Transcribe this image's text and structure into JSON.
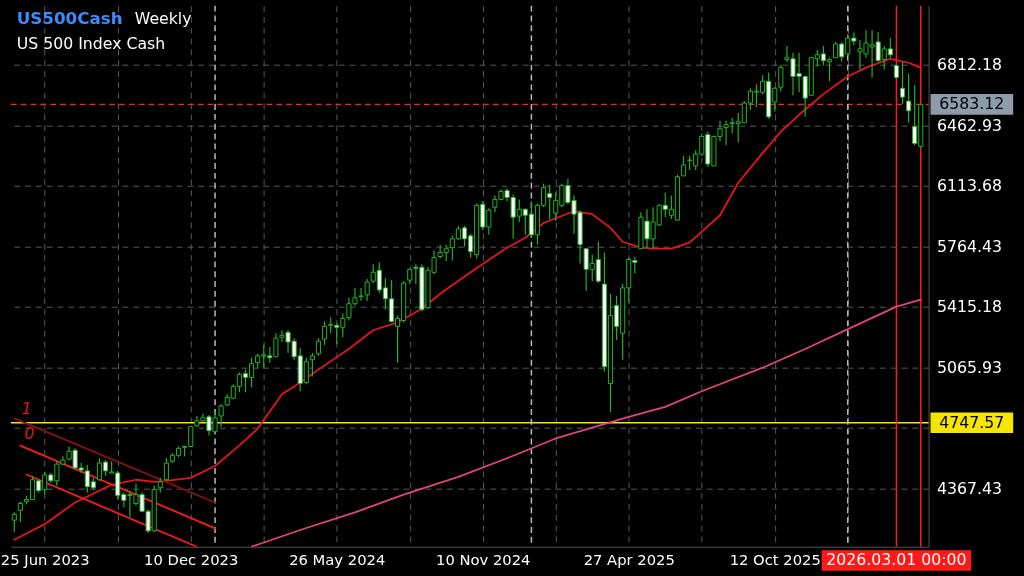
{
  "chart_data": {
    "type": "candlestick",
    "title": "US500Cash",
    "subtitle": "US 500 Index Cash",
    "annotations": [
      "Weekly",
      "1",
      "0"
    ],
    "color": "#22b422",
    "x": [
      "2023-05-21",
      "2023-05-28",
      "2023-06-04",
      "2023-06-11",
      "2023-06-18",
      "2023-06-25",
      "2023-07-02",
      "2023-07-09",
      "2023-07-16",
      "2023-07-23",
      "2023-07-30",
      "2023-08-06",
      "2023-08-13",
      "2023-08-20",
      "2023-08-27",
      "2023-09-03",
      "2023-09-10",
      "2023-09-17",
      "2023-09-24",
      "2023-10-01",
      "2023-10-08",
      "2023-10-15",
      "2023-10-22",
      "2023-10-29",
      "2023-11-05",
      "2023-11-12",
      "2023-11-19",
      "2023-11-26",
      "2023-12-03",
      "2023-12-10",
      "2023-12-17",
      "2023-12-24",
      "2023-12-31",
      "2024-01-07",
      "2024-01-14",
      "2024-01-21",
      "2024-01-28",
      "2024-02-04",
      "2024-02-11",
      "2024-02-18",
      "2024-02-25",
      "2024-03-03",
      "2024-03-10",
      "2024-03-17",
      "2024-03-24",
      "2024-03-31",
      "2024-04-07",
      "2024-04-14",
      "2024-04-21",
      "2024-04-28",
      "2024-05-05",
      "2024-05-12",
      "2024-05-19",
      "2024-05-26",
      "2024-06-02",
      "2024-06-09",
      "2024-06-16",
      "2024-06-23",
      "2024-06-30",
      "2024-07-07",
      "2024-07-14",
      "2024-07-21",
      "2024-07-28",
      "2024-08-04",
      "2024-08-11",
      "2024-08-18",
      "2024-08-25",
      "2024-09-01",
      "2024-09-08",
      "2024-09-15",
      "2024-09-22",
      "2024-09-29",
      "2024-10-06",
      "2024-10-13",
      "2024-10-20",
      "2024-10-27",
      "2024-11-03",
      "2024-11-10",
      "2024-11-17",
      "2024-11-24",
      "2024-12-01",
      "2024-12-08",
      "2024-12-15",
      "2024-12-22",
      "2024-12-29",
      "2025-01-05",
      "2025-01-12",
      "2025-01-19",
      "2025-01-26",
      "2025-02-02",
      "2025-02-09",
      "2025-02-16",
      "2025-02-23",
      "2025-03-02",
      "2025-03-09",
      "2025-03-16",
      "2025-03-23",
      "2025-03-30",
      "2025-04-06",
      "2025-04-13",
      "2025-04-20",
      "2025-04-27",
      "2025-05-04",
      "2025-05-11",
      "2025-05-18",
      "2025-05-25",
      "2025-06-01",
      "2025-06-08",
      "2025-06-15",
      "2025-06-22",
      "2025-06-29",
      "2025-07-06",
      "2025-07-13",
      "2025-07-20",
      "2025-07-27",
      "2025-08-03",
      "2025-08-10",
      "2025-08-17",
      "2025-08-24",
      "2025-08-31",
      "2025-09-07",
      "2025-09-14",
      "2025-09-21",
      "2025-09-28",
      "2025-10-05",
      "2025-10-12",
      "2025-10-19",
      "2025-10-26",
      "2025-11-02",
      "2025-11-09",
      "2025-11-16",
      "2025-11-23",
      "2025-11-30",
      "2025-12-07",
      "2025-12-14",
      "2025-12-21",
      "2025-12-28",
      "2026-01-04",
      "2026-01-11",
      "2026-01-18",
      "2026-01-25",
      "2026-02-01",
      "2026-02-08",
      "2026-02-15",
      "2026-02-22",
      "2026-03-01",
      "2026-03-08",
      "2026-03-15",
      "2026-03-22",
      "2026-03-29"
    ],
    "ohlc": [
      [
        4186,
        4232,
        4118,
        4220
      ],
      [
        4243,
        4294,
        4175,
        4282
      ],
      [
        4294,
        4328,
        4277,
        4305
      ],
      [
        4305,
        4441,
        4305,
        4419
      ],
      [
        4413,
        4419,
        4345,
        4356
      ],
      [
        4362,
        4464,
        4334,
        4447
      ],
      [
        4447,
        4458,
        4402,
        4413
      ],
      [
        4413,
        4526,
        4385,
        4509
      ],
      [
        4509,
        4555,
        4504,
        4532
      ],
      [
        4538,
        4611,
        4532,
        4583
      ],
      [
        4589,
        4600,
        4475,
        4487
      ],
      [
        4487,
        4515,
        4458,
        4475
      ],
      [
        4470,
        4504,
        4345,
        4379
      ],
      [
        4407,
        4430,
        4362,
        4373
      ],
      [
        4419,
        4543,
        4413,
        4515
      ],
      [
        4521,
        4532,
        4441,
        4470
      ],
      [
        4458,
        4526,
        4458,
        4464
      ],
      [
        4458,
        4470,
        4305,
        4328
      ],
      [
        4334,
        4345,
        4260,
        4300
      ],
      [
        4328,
        4356,
        4203,
        4334
      ],
      [
        4282,
        4396,
        4271,
        4334
      ],
      [
        4334,
        4345,
        4231,
        4237
      ],
      [
        4237,
        4248,
        4112,
        4124
      ],
      [
        4124,
        4385,
        4118,
        4362
      ],
      [
        4373,
        4430,
        4345,
        4407
      ],
      [
        4419,
        4543,
        4413,
        4515
      ],
      [
        4526,
        4572,
        4515,
        4560
      ],
      [
        4560,
        4611,
        4549,
        4600
      ],
      [
        4606,
        4617,
        4555,
        4611
      ],
      [
        4611,
        4730,
        4606,
        4725
      ],
      [
        4730,
        4787,
        4725,
        4759
      ],
      [
        4759,
        4799,
        4753,
        4776
      ],
      [
        4782,
        4793,
        4674,
        4702
      ],
      [
        4696,
        4810,
        4696,
        4776
      ],
      [
        4787,
        4855,
        4725,
        4844
      ],
      [
        4850,
        4912,
        4844,
        4895
      ],
      [
        4889,
        4969,
        4884,
        4957
      ],
      [
        4957,
        5037,
        4923,
        5026
      ],
      [
        5031,
        5054,
        4923,
        5009
      ],
      [
        5009,
        5122,
        4952,
        5088
      ],
      [
        5094,
        5145,
        5060,
        5133
      ],
      [
        5133,
        5196,
        5065,
        5139
      ],
      [
        5133,
        5184,
        5094,
        5122
      ],
      [
        5128,
        5264,
        5128,
        5235
      ],
      [
        5241,
        5281,
        5213,
        5252
      ],
      [
        5269,
        5281,
        5150,
        5213
      ],
      [
        5218,
        5235,
        5111,
        5128
      ],
      [
        5133,
        5179,
        4929,
        4974
      ],
      [
        4980,
        5122,
        4969,
        5099
      ],
      [
        5111,
        5150,
        5014,
        5133
      ],
      [
        5145,
        5235,
        5133,
        5218
      ],
      [
        5230,
        5332,
        5196,
        5303
      ],
      [
        5309,
        5354,
        5264,
        5315
      ],
      [
        5309,
        5320,
        5201,
        5298
      ],
      [
        5298,
        5377,
        5241,
        5349
      ],
      [
        5354,
        5468,
        5337,
        5434
      ],
      [
        5434,
        5525,
        5423,
        5468
      ],
      [
        5474,
        5525,
        5451,
        5479
      ],
      [
        5485,
        5576,
        5451,
        5559
      ],
      [
        5564,
        5661,
        5553,
        5615
      ],
      [
        5627,
        5672,
        5496,
        5513
      ],
      [
        5525,
        5581,
        5400,
        5462
      ],
      [
        5462,
        5570,
        5326,
        5332
      ],
      [
        5303,
        5366,
        5094,
        5349
      ],
      [
        5337,
        5564,
        5326,
        5553
      ],
      [
        5570,
        5638,
        5547,
        5632
      ],
      [
        5644,
        5661,
        5547,
        5638
      ],
      [
        5644,
        5661,
        5389,
        5400
      ],
      [
        5411,
        5644,
        5405,
        5627
      ],
      [
        5615,
        5740,
        5604,
        5700
      ],
      [
        5706,
        5774,
        5695,
        5729
      ],
      [
        5729,
        5774,
        5678,
        5751
      ],
      [
        5757,
        5825,
        5683,
        5808
      ],
      [
        5808,
        5882,
        5802,
        5865
      ],
      [
        5871,
        5882,
        5763,
        5808
      ],
      [
        5825,
        5837,
        5700,
        5734
      ],
      [
        5717,
        6012,
        5695,
        6001
      ],
      [
        6007,
        6024,
        5859,
        5876
      ],
      [
        5876,
        5984,
        5831,
        5973
      ],
      [
        5990,
        6058,
        5961,
        6035
      ],
      [
        6035,
        6092,
        6030,
        6081
      ],
      [
        6086,
        6098,
        6024,
        6046
      ],
      [
        6046,
        6063,
        5808,
        5933
      ],
      [
        5939,
        6035,
        5905,
        5978
      ],
      [
        5978,
        5984,
        5831,
        5944
      ],
      [
        5950,
        6024,
        5814,
        5831
      ],
      [
        5831,
        6012,
        5774,
        6001
      ],
      [
        6001,
        6126,
        5990,
        6103
      ],
      [
        6069,
        6120,
        5922,
        6046
      ],
      [
        5956,
        6075,
        5910,
        6029
      ],
      [
        6001,
        6126,
        5990,
        6115
      ],
      [
        6115,
        6154,
        6007,
        6018
      ],
      [
        6029,
        6058,
        5837,
        5950
      ],
      [
        5961,
        5973,
        5666,
        5774
      ],
      [
        5751,
        5757,
        5508,
        5632
      ],
      [
        5632,
        5717,
        5564,
        5666
      ],
      [
        5689,
        5791,
        5553,
        5564
      ],
      [
        5547,
        5729,
        5043,
        5071
      ],
      [
        4974,
        5491,
        4810,
        5366
      ],
      [
        5423,
        5479,
        5224,
        5303
      ],
      [
        5264,
        5547,
        5111,
        5525
      ],
      [
        5525,
        5700,
        5440,
        5689
      ],
      [
        5683,
        5706,
        5610,
        5672
      ],
      [
        5751,
        5961,
        5751,
        5933
      ],
      [
        5910,
        5978,
        5757,
        5808
      ],
      [
        5808,
        5990,
        5751,
        5905
      ],
      [
        5888,
        6007,
        5882,
        6001
      ],
      [
        6001,
        6075,
        5933,
        5978
      ],
      [
        5944,
        6058,
        5922,
        5978
      ],
      [
        5916,
        6177,
        5910,
        6166
      ],
      [
        6171,
        6285,
        6171,
        6234
      ],
      [
        6259,
        6285,
        6205,
        6262
      ],
      [
        6228,
        6319,
        6205,
        6296
      ],
      [
        6296,
        6415,
        6285,
        6398
      ],
      [
        6409,
        6426,
        6222,
        6239
      ],
      [
        6228,
        6404,
        6228,
        6398
      ],
      [
        6398,
        6489,
        6370,
        6443
      ],
      [
        6449,
        6489,
        6347,
        6466
      ],
      [
        6472,
        6506,
        6415,
        6477
      ],
      [
        6472,
        6534,
        6364,
        6483
      ],
      [
        6477,
        6602,
        6477,
        6591
      ],
      [
        6591,
        6676,
        6551,
        6659
      ],
      [
        6653,
        6699,
        6568,
        6659
      ],
      [
        6653,
        6750,
        6642,
        6716
      ],
      [
        6716,
        6767,
        6500,
        6511
      ],
      [
        6597,
        6682,
        6540,
        6676
      ],
      [
        6682,
        6812,
        6659,
        6795
      ],
      [
        6841,
        6920,
        6829,
        6852
      ],
      [
        6846,
        6880,
        6636,
        6744
      ],
      [
        6761,
        6880,
        6653,
        6744
      ],
      [
        6744,
        6750,
        6511,
        6619
      ],
      [
        6636,
        6858,
        6631,
        6852
      ],
      [
        6846,
        6897,
        6801,
        6869
      ],
      [
        6874,
        6920,
        6807,
        6835
      ],
      [
        6829,
        6852,
        6716,
        6841
      ],
      [
        6852,
        6943,
        6852,
        6931
      ],
      [
        6931,
        6943,
        6829,
        6857
      ],
      [
        6874,
        6988,
        6863,
        6965
      ],
      [
        6965,
        6999,
        6926,
        6948
      ],
      [
        6886,
        6954,
        6784,
        6903
      ],
      [
        6874,
        7011,
        6852,
        6937
      ],
      [
        6914,
        7011,
        6738,
        6926
      ],
      [
        6943,
        6999,
        6829,
        6835
      ],
      [
        6841,
        6920,
        6784,
        6903
      ],
      [
        6903,
        6965,
        6852,
        6869
      ],
      [
        6807,
        6812,
        6727,
        6738
      ],
      [
        6676,
        6829,
        6585,
        6625
      ],
      [
        6602,
        6761,
        6477,
        6546
      ],
      [
        6455,
        6693,
        6347,
        6358
      ],
      [
        6341,
        6585,
        6336,
        6583
      ]
    ],
    "series": [
      {
        "type": "line",
        "color": "#e8141b",
        "x": [
          "2023-05-21",
          "2023-06-25",
          "2023-07-30",
          "2023-09-10",
          "2023-10-08",
          "2023-10-29",
          "2023-11-12",
          "2023-12-10",
          "2024-01-07",
          "2024-02-04",
          "2024-02-25",
          "2024-03-24",
          "2024-04-14",
          "2024-05-05",
          "2024-06-09",
          "2024-07-07",
          "2024-08-04",
          "2024-09-01",
          "2024-09-22",
          "2024-10-27",
          "2024-12-08",
          "2024-12-29",
          "2025-01-19",
          "2025-02-23",
          "2025-03-16",
          "2025-04-06",
          "2025-04-20",
          "2025-05-11",
          "2025-05-25",
          "2025-06-15",
          "2025-07-06",
          "2025-08-10",
          "2025-08-31",
          "2025-09-28",
          "2025-10-19",
          "2025-11-09",
          "2025-12-07",
          "2026-01-04",
          "2026-01-25",
          "2026-02-22",
          "2026-03-15",
          "2026-03-29"
        ],
        "values": [
          4073,
          4163,
          4288,
          4390,
          4419,
          4407,
          4413,
          4430,
          4498,
          4617,
          4713,
          4912,
          4980,
          5054,
          5173,
          5281,
          5326,
          5405,
          5491,
          5615,
          5757,
          5814,
          5899,
          5967,
          5950,
          5871,
          5791,
          5757,
          5751,
          5751,
          5786,
          5944,
          6131,
          6302,
          6426,
          6523,
          6642,
          6744,
          6795,
          6846,
          6823,
          6795
        ]
      },
      {
        "type": "line",
        "color": "#e0457b",
        "x": [
          "2024-02-18",
          "2024-04-21",
          "2024-06-16",
          "2024-08-11",
          "2024-10-13",
          "2024-12-08",
          "2025-02-02",
          "2025-04-27",
          "2025-06-08",
          "2025-07-20",
          "2025-09-28",
          "2025-11-16",
          "2026-01-11",
          "2026-03-01",
          "2026-03-29"
        ],
        "values": [
          4033,
          4141,
          4231,
          4333,
          4436,
          4543,
          4657,
          4782,
          4839,
          4929,
          5065,
          5173,
          5303,
          5417,
          5457
        ]
      },
      {
        "type": "line",
        "color": "#8b1010",
        "x": [
          "2023-05-21",
          "2024-01-07"
        ],
        "values": [
          4773,
          4288
        ]
      },
      {
        "type": "line",
        "color": "#ff1a1a",
        "x": [
          "2023-05-28",
          "2024-01-07"
        ],
        "values": [
          4616,
          4139
        ]
      },
      {
        "type": "line",
        "color": "#ff1a1a",
        "x": [
          "2023-06-04",
          "2023-12-17"
        ],
        "values": [
          4449,
          4033
        ]
      }
    ],
    "xlim": [
      "2023-05-17",
      "2026-04-07"
    ],
    "ylim": [
      4033,
      7152
    ],
    "xticks": [
      {
        "value": "2023-06-25",
        "label": "25 Jun 2023"
      },
      {
        "value": "2023-09-17",
        "label": null
      },
      {
        "value": "2023-12-10",
        "label": "10 Dec 2023"
      },
      {
        "value": "2024-03-03",
        "label": null
      },
      {
        "value": "2024-05-26",
        "label": "26 May 2024"
      },
      {
        "value": "2024-08-18",
        "label": null
      },
      {
        "value": "2024-11-10",
        "label": "10 Nov 2024"
      },
      {
        "value": "2025-02-02",
        "label": null
      },
      {
        "value": "2025-04-27",
        "label": "27 Apr 2025"
      },
      {
        "value": "2025-07-20",
        "label": null
      },
      {
        "value": "2025-10-12",
        "label": "12 Oct 2025"
      },
      {
        "value": "2026-01-04",
        "label": null
      }
    ],
    "yticks": [
      6812.18,
      6462.93,
      6113.68,
      5764.43,
      5415.18,
      5065.93,
      {
        "value": 4716.68,
        "label": null
      },
      4367.43
    ],
    "grid": true,
    "ref_lines": [
      {
        "axis": "y",
        "value": 6583.12,
        "label": "6583.12",
        "color": "#ff2020",
        "line_style": "dashed"
      },
      {
        "axis": "y",
        "value": 4747.57,
        "label": "4747.57",
        "color": "#f5e600",
        "line_style": "solid"
      },
      {
        "axis": "x",
        "value": "2026-03-01",
        "label": "2026.03.01 00:00",
        "color": "#ff1a1a",
        "line_style": "solid"
      },
      {
        "axis": "x",
        "value": "2026-03-29",
        "color": "#ff1a1a",
        "line_style": "solid"
      },
      {
        "axis": "x",
        "value": "2024-01-07",
        "color": "#bbbbbb",
        "line_style": "dashed"
      },
      {
        "axis": "x",
        "value": "2025-01-05",
        "color": "#bbbbbb",
        "line_style": "dashed"
      },
      {
        "axis": "x",
        "value": "2026-01-04",
        "color": "#bbbbbb",
        "line_style": "dashed"
      }
    ]
  }
}
